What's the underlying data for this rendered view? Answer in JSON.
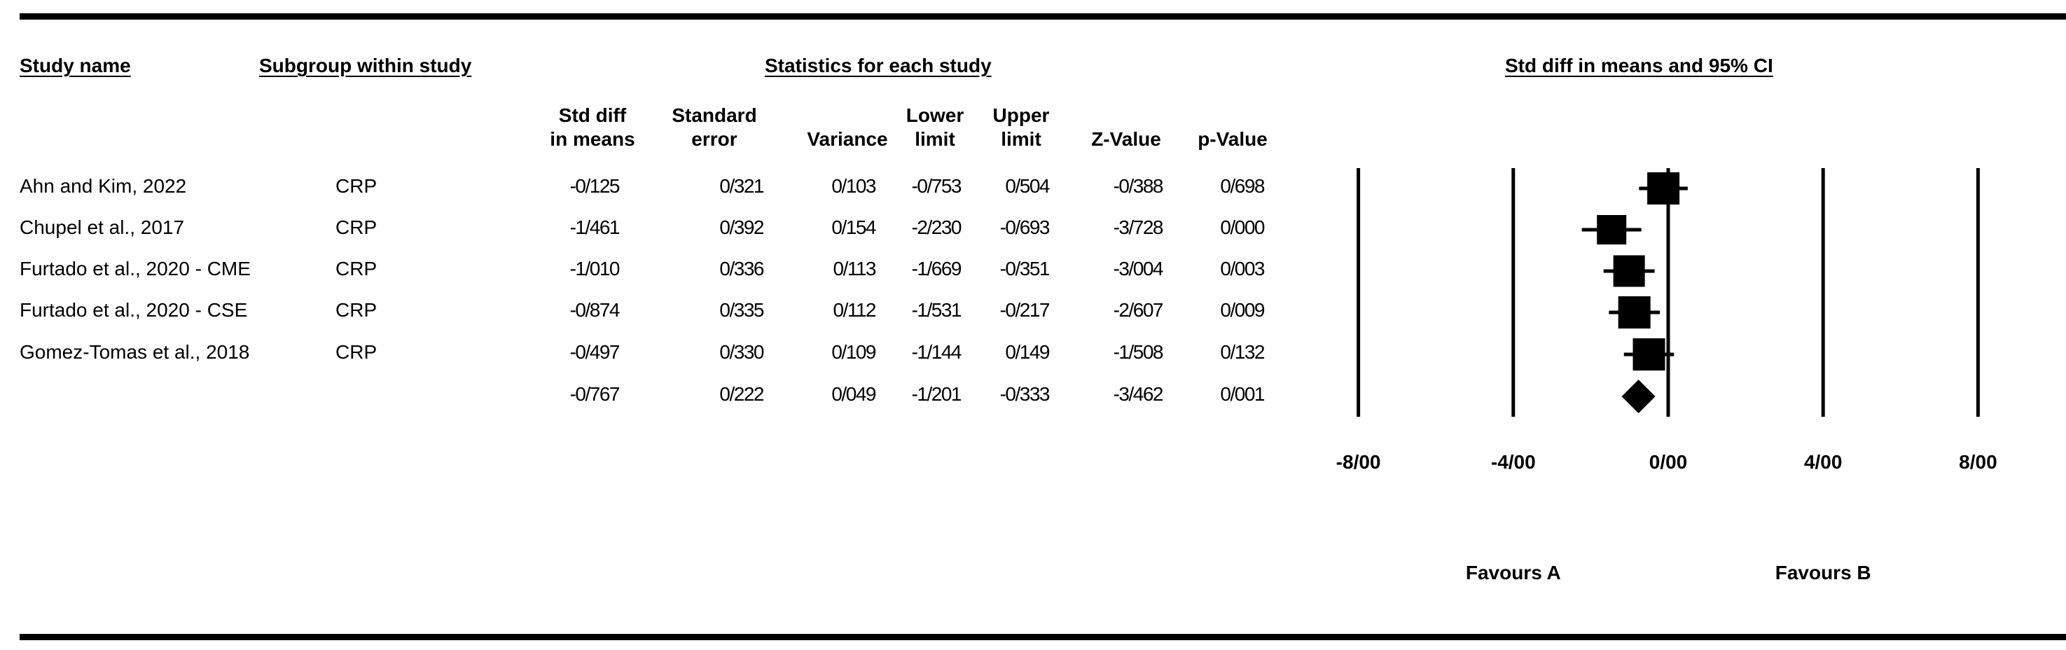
{
  "headers": {
    "study_name": "Study name",
    "subgroup": "Subgroup within study",
    "statistics": "Statistics for each study",
    "plot_title": "Std diff in means and 95% CI"
  },
  "columns": [
    {
      "line1": "Std diff",
      "line2": "in means"
    },
    {
      "line1": "Standard",
      "line2": "error"
    },
    {
      "line1": "",
      "line2": "Variance"
    },
    {
      "line1": "Lower",
      "line2": "limit"
    },
    {
      "line1": "Upper",
      "line2": "limit"
    },
    {
      "line1": "",
      "line2": "Z-Value"
    },
    {
      "line1": "",
      "line2": "p-Value"
    }
  ],
  "rows": [
    {
      "study": "Ahn and Kim, 2022",
      "subgroup": "CRP",
      "values": [
        "-0/125",
        "0/321",
        "0/103",
        "-0/753",
        "0/504",
        "-0/388",
        "0/698"
      ]
    },
    {
      "study": "Chupel et al., 2017",
      "subgroup": "CRP",
      "values": [
        "-1/461",
        "0/392",
        "0/154",
        "-2/230",
        "-0/693",
        "-3/728",
        "0/000"
      ]
    },
    {
      "study": "Furtado et al., 2020 - CME",
      "subgroup": "CRP",
      "values": [
        "-1/010",
        "0/336",
        "0/113",
        "-1/669",
        "-0/351",
        "-3/004",
        "0/003"
      ]
    },
    {
      "study": "Furtado et al., 2020 - CSE",
      "subgroup": "CRP",
      "values": [
        "-0/874",
        "0/335",
        "0/112",
        "-1/531",
        "-0/217",
        "-2/607",
        "0/009"
      ]
    },
    {
      "study": "Gomez-Tomas et al., 2018",
      "subgroup": "CRP",
      "values": [
        "-0/497",
        "0/330",
        "0/109",
        "-1/144",
        "0/149",
        "-1/508",
        "0/132"
      ]
    },
    {
      "study": "",
      "subgroup": "",
      "values": [
        "-0/767",
        "0/222",
        "0/049",
        "-1/201",
        "-0/333",
        "-3/462",
        "0/001"
      ]
    }
  ],
  "chart_data": {
    "type": "forest",
    "title": "Std diff in means and 95% CI",
    "xlim": [
      -8,
      8
    ],
    "xticks": [
      -8,
      -4,
      0,
      4,
      8
    ],
    "xtick_labels": [
      "-8/00",
      "-4/00",
      "0/00",
      "4/00",
      "8/00"
    ],
    "favours_left": "Favours A",
    "favours_right": "Favours B",
    "studies": [
      {
        "name": "Ahn and Kim, 2022",
        "effect": -0.125,
        "lower": -0.753,
        "upper": 0.504
      },
      {
        "name": "Chupel et al., 2017",
        "effect": -1.461,
        "lower": -2.23,
        "upper": -0.693
      },
      {
        "name": "Furtado et al., 2020 - CME",
        "effect": -1.01,
        "lower": -1.669,
        "upper": -0.351
      },
      {
        "name": "Furtado et al., 2020 - CSE",
        "effect": -0.874,
        "lower": -1.531,
        "upper": -0.217
      },
      {
        "name": "Gomez-Tomas et al., 2018",
        "effect": -0.497,
        "lower": -1.144,
        "upper": 0.149
      }
    ],
    "summary": {
      "effect": -0.767,
      "lower": -1.201,
      "upper": -0.333
    },
    "marker_color": "#000000"
  }
}
